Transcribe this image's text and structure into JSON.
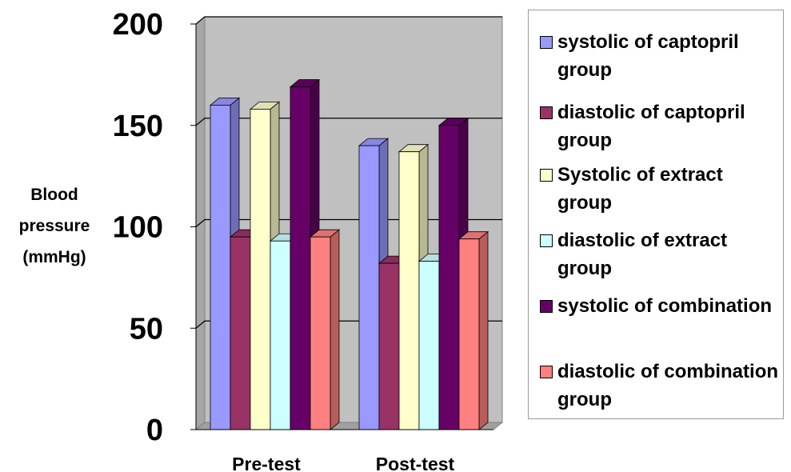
{
  "chart_data": {
    "type": "bar",
    "categories": [
      "Pre-test",
      "Post-test"
    ],
    "ylabel_lines": [
      "Blood",
      "pressure",
      "(mmHg)"
    ],
    "yticks": [
      "0",
      "50",
      "100",
      "150",
      "200"
    ],
    "ylim": [
      0,
      200
    ],
    "grid": true,
    "legend_position": "right",
    "series": [
      {
        "name": "systolic of captopril group",
        "color": "#9999ff",
        "values": [
          160,
          140
        ]
      },
      {
        "name": "diastolic of captopril group",
        "color": "#993366",
        "values": [
          95,
          82
        ]
      },
      {
        "name": "Systolic of extract group",
        "color": "#ffffcc",
        "values": [
          158,
          137
        ]
      },
      {
        "name": "diastolic of extract group",
        "color": "#ccffff",
        "values": [
          93,
          83
        ]
      },
      {
        "name": "systolic of combination",
        "color": "#660066",
        "values": [
          169,
          150
        ]
      },
      {
        "name": "diastolic of combination group",
        "color": "#ff8080",
        "values": [
          95,
          94
        ]
      }
    ]
  }
}
